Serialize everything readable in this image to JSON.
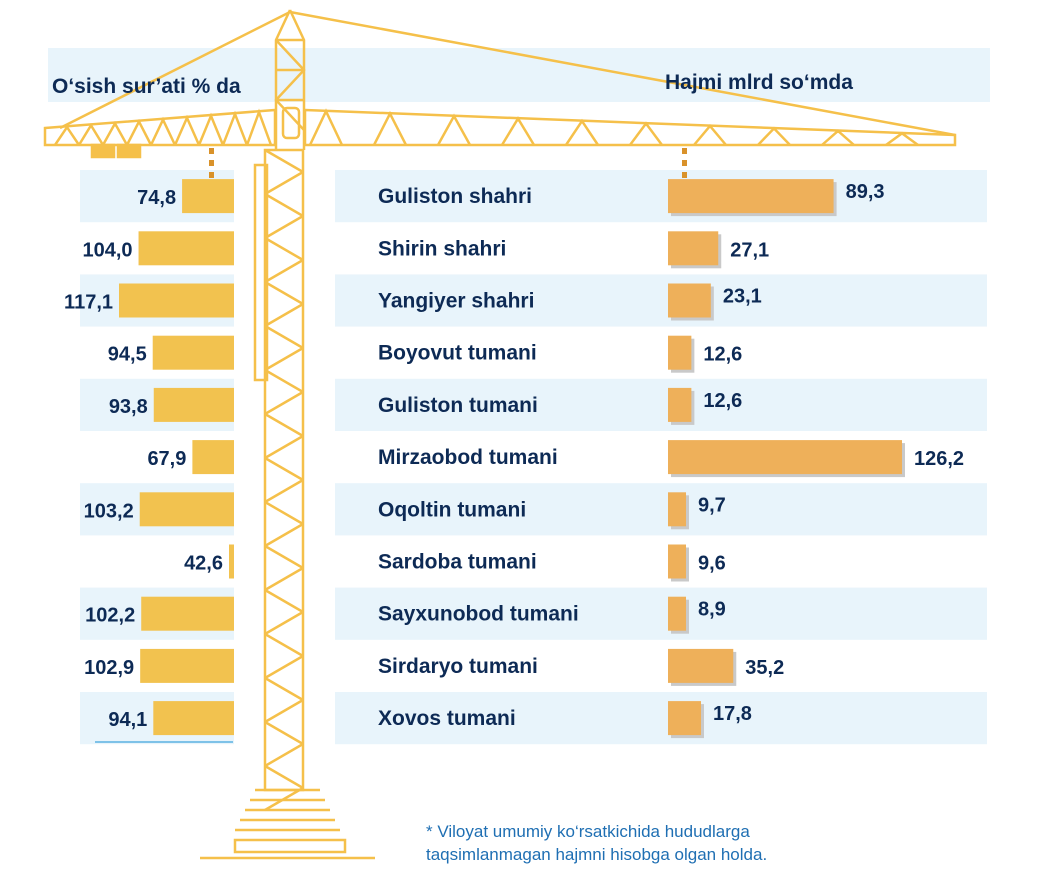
{
  "headers": {
    "left": "O‘sish sur’ati % da",
    "right": "Hajmi mlrd so‘mda"
  },
  "footnote": {
    "line1": "* Viloyat umumiy ko‘rsatkichida hududlarga",
    "line2": "taqsimlanmagan hajmni hisobga olgan holda."
  },
  "colors": {
    "growth_bar": "#f2c24f",
    "volume_bar": "#eeb05a",
    "stripe": "#e8f4fb",
    "crane": "#f5c04a",
    "text": "#0d2a55",
    "note": "#1f6fb3"
  },
  "chart_data": [
    {
      "type": "bar",
      "orientation": "horizontal",
      "direction": "right-to-left",
      "title": "O‘sish sur’ati % da",
      "categories": [
        "Guliston shahri",
        "Shirin shahri",
        "Yangiyer shahri",
        "Boyovut tumani",
        "Guliston tumani",
        "Mirzaobod tumani",
        "Oqoltin tumani",
        "Sardoba tumani",
        "Sayxunobod tumani",
        "Sirdaryo tumani",
        "Xovos tumani"
      ],
      "values": [
        74.8,
        104.0,
        117.1,
        94.5,
        93.8,
        67.9,
        103.2,
        42.6,
        102.2,
        102.9,
        94.1
      ],
      "labels": [
        "74,8",
        "104,0",
        "117,1",
        "94,5",
        "93,8",
        "67,9",
        "103,2",
        "42,6",
        "102,2",
        "102,9",
        "94,1"
      ]
    },
    {
      "type": "bar",
      "orientation": "horizontal",
      "title": "Hajmi mlrd so‘mda",
      "categories": [
        "Guliston shahri",
        "Shirin shahri",
        "Yangiyer shahri",
        "Boyovut tumani",
        "Guliston tumani",
        "Mirzaobod tumani",
        "Oqoltin tumani",
        "Sardoba tumani",
        "Sayxunobod tumani",
        "Sirdaryo tumani",
        "Xovos tumani"
      ],
      "values": [
        89.3,
        27.1,
        23.1,
        12.6,
        12.6,
        126.2,
        9.7,
        9.6,
        8.9,
        35.2,
        17.8
      ],
      "labels": [
        "89,3",
        "27,1",
        "23,1",
        "12,6",
        "12,6",
        "126,2",
        "9,7",
        "9,6",
        "8,9",
        "35,2",
        "17,8"
      ]
    }
  ]
}
